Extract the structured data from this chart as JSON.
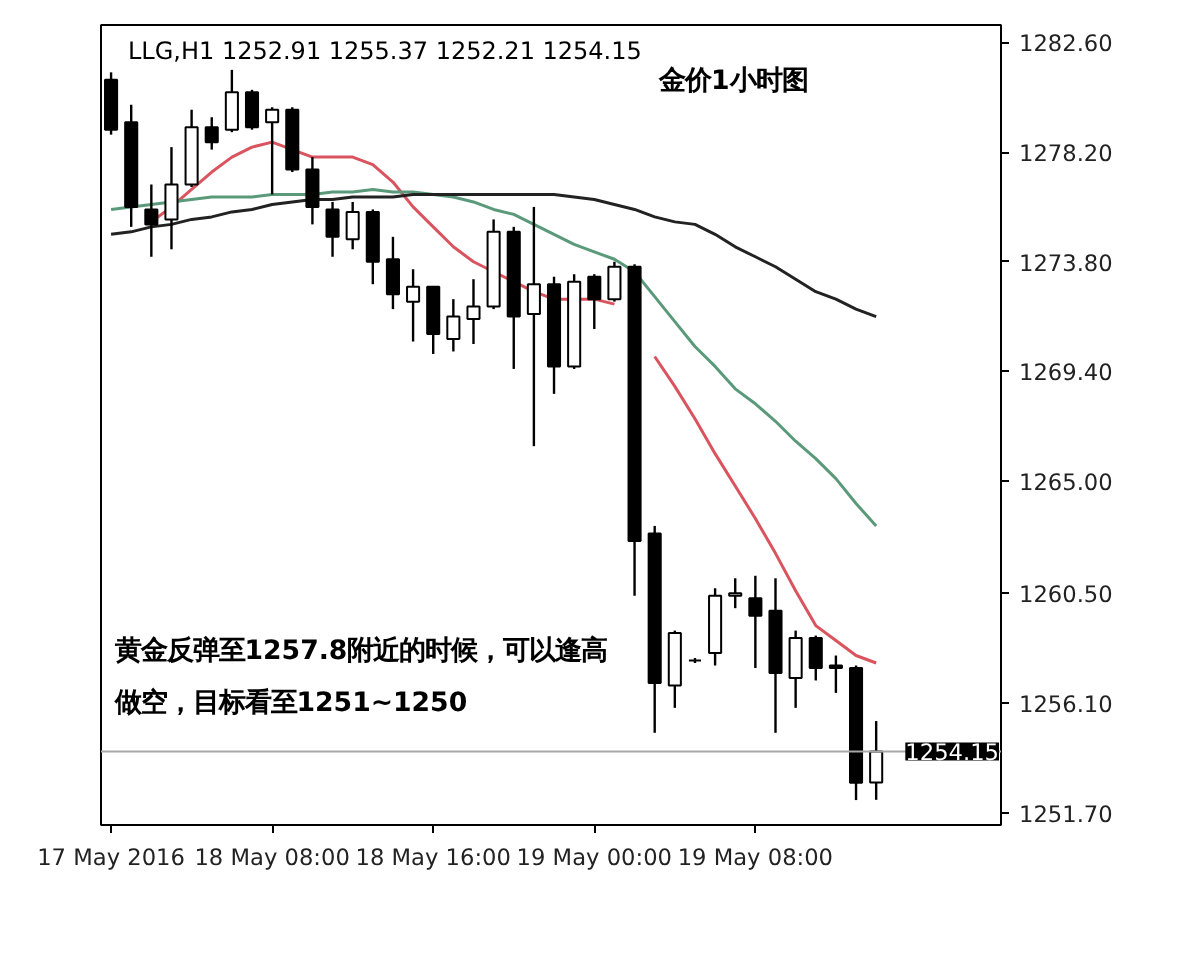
{
  "chart_data": {
    "type": "candlestick",
    "title": "金价1小时图",
    "annotations": [
      "LLG,H1 1252.91 1255.37 1252.21 1254.15",
      "黄金反弹至1257.8附近的时候，可以逢高",
      "做空，目标看至1251~1250"
    ],
    "categories": [
      "17 May 2016",
      null,
      null,
      null,
      null,
      null,
      null,
      null,
      "18 May 08:00",
      null,
      null,
      null,
      null,
      null,
      null,
      null,
      "18 May 16:00",
      null,
      null,
      null,
      null,
      null,
      null,
      null,
      "19 May 00:00",
      null,
      null,
      null,
      null,
      null,
      null,
      null,
      "19 May 08:00",
      null,
      null,
      null,
      null,
      null,
      null
    ],
    "ohlc": [
      [
        1281.1,
        1281.4,
        1278.9,
        1279.1
      ],
      [
        1279.4,
        1280.1,
        1275.2,
        1276.0
      ],
      [
        1275.9,
        1276.9,
        1274.0,
        1275.3
      ],
      [
        1275.5,
        1278.4,
        1274.3,
        1276.9
      ],
      [
        1276.9,
        1279.9,
        1276.8,
        1279.2
      ],
      [
        1279.2,
        1279.6,
        1278.3,
        1278.6
      ],
      [
        1279.1,
        1281.5,
        1279.0,
        1280.6
      ],
      [
        1280.6,
        1280.7,
        1279.1,
        1279.2
      ],
      [
        1279.4,
        1280.0,
        1276.5,
        1279.9
      ],
      [
        1279.9,
        1280.0,
        1277.4,
        1277.5
      ],
      [
        1277.5,
        1278.0,
        1275.3,
        1276.0
      ],
      [
        1275.9,
        1276.2,
        1274.0,
        1274.8
      ],
      [
        1274.7,
        1276.2,
        1274.3,
        1275.8
      ],
      [
        1275.8,
        1275.9,
        1272.9,
        1273.8
      ],
      [
        1273.9,
        1274.8,
        1271.9,
        1272.5
      ],
      [
        1272.2,
        1273.5,
        1270.6,
        1272.8
      ],
      [
        1272.8,
        1272.8,
        1270.1,
        1270.9
      ],
      [
        1270.7,
        1272.3,
        1270.2,
        1271.6
      ],
      [
        1271.5,
        1273.1,
        1270.5,
        1272.0
      ],
      [
        1272.0,
        1275.5,
        1271.9,
        1275.0
      ],
      [
        1275.0,
        1275.2,
        1269.5,
        1271.6
      ],
      [
        1271.7,
        1276.0,
        1266.4,
        1272.9
      ],
      [
        1272.9,
        1273.2,
        1268.5,
        1269.6
      ],
      [
        1269.6,
        1273.3,
        1269.5,
        1273.0
      ],
      [
        1273.2,
        1273.3,
        1271.1,
        1272.3
      ],
      [
        1272.3,
        1273.8,
        1272.2,
        1273.6
      ],
      [
        1273.6,
        1273.7,
        1260.4,
        1262.6
      ],
      [
        1262.9,
        1263.2,
        1254.9,
        1256.9
      ],
      [
        1256.8,
        1259.0,
        1255.9,
        1258.9
      ],
      [
        1257.8,
        1257.9,
        1257.7,
        1257.8
      ],
      [
        1258.1,
        1260.7,
        1257.6,
        1260.4
      ],
      [
        1260.4,
        1261.1,
        1259.9,
        1260.5
      ],
      [
        1260.3,
        1261.2,
        1257.5,
        1259.6
      ],
      [
        1259.8,
        1261.1,
        1254.9,
        1257.3
      ],
      [
        1257.1,
        1259.0,
        1255.9,
        1258.7
      ],
      [
        1258.7,
        1258.8,
        1257.0,
        1257.5
      ],
      [
        1257.6,
        1258.0,
        1256.5,
        1257.5
      ],
      [
        1257.5,
        1257.6,
        1252.2,
        1252.9
      ],
      [
        1252.91,
        1255.37,
        1252.21,
        1254.15
      ]
    ],
    "series": [
      {
        "type": "line",
        "color": "#d9545e",
        "values": [
          null,
          null,
          1275.4,
          1276.0,
          1276.7,
          1277.4,
          1278.0,
          1278.4,
          1278.6,
          1278.3,
          1278.0,
          1278.0,
          1278.0,
          1277.7,
          1277.0,
          1276.0,
          1275.2,
          1274.4,
          1273.8,
          1273.4,
          1273.0,
          1272.6,
          1272.3,
          1272.3,
          1272.3,
          1272.1,
          null,
          1270.0,
          1268.8,
          1267.5,
          1266.1,
          1264.8,
          1263.5,
          1262.1,
          1260.6,
          1259.2,
          1258.6,
          1258.0,
          1257.7
        ]
      },
      {
        "type": "line",
        "color": "#5a9a7a",
        "values": [
          1275.9,
          1276.0,
          1276.1,
          1276.2,
          1276.3,
          1276.4,
          1276.4,
          1276.4,
          1276.5,
          1276.5,
          1276.5,
          1276.6,
          1276.6,
          1276.7,
          1276.6,
          1276.6,
          1276.5,
          1276.4,
          1276.2,
          1275.9,
          1275.7,
          1275.3,
          1274.9,
          1274.5,
          1274.2,
          1273.9,
          1273.4,
          1272.4,
          1271.4,
          1270.4,
          1269.6,
          1268.7,
          1268.1,
          1267.4,
          1266.6,
          1265.9,
          1265.1,
          1264.1,
          1263.2
        ]
      },
      {
        "type": "line",
        "color": "#222222",
        "values": [
          1274.9,
          1275.0,
          1275.2,
          1275.3,
          1275.5,
          1275.6,
          1275.8,
          1275.9,
          1276.1,
          1276.2,
          1276.3,
          1276.3,
          1276.4,
          1276.4,
          1276.4,
          1276.5,
          1276.5,
          1276.5,
          1276.5,
          1276.5,
          1276.5,
          1276.5,
          1276.5,
          1276.4,
          1276.3,
          1276.1,
          1275.9,
          1275.6,
          1275.4,
          1275.3,
          1274.9,
          1274.4,
          1274.0,
          1273.6,
          1273.1,
          1272.6,
          1272.3,
          1271.9,
          1271.6
        ]
      }
    ],
    "ylim": [
      1251.2,
      1283.3
    ],
    "yticks": [
      {
        "value": 1282.6,
        "label": "1282.60"
      },
      {
        "value": 1278.2,
        "label": "1278.20"
      },
      {
        "value": 1273.8,
        "label": "1273.80"
      },
      {
        "value": 1269.4,
        "label": "1269.40"
      },
      {
        "value": 1265.0,
        "label": "1265.00"
      },
      {
        "value": 1260.5,
        "label": "1260.50"
      },
      {
        "value": 1256.1,
        "label": "1256.10"
      },
      {
        "value": 1251.7,
        "label": "1251.70"
      }
    ],
    "ref_lines": [
      {
        "axis": "y",
        "value": 1254.15,
        "label": "1254.15",
        "color": "#a8a8a8"
      }
    ]
  }
}
